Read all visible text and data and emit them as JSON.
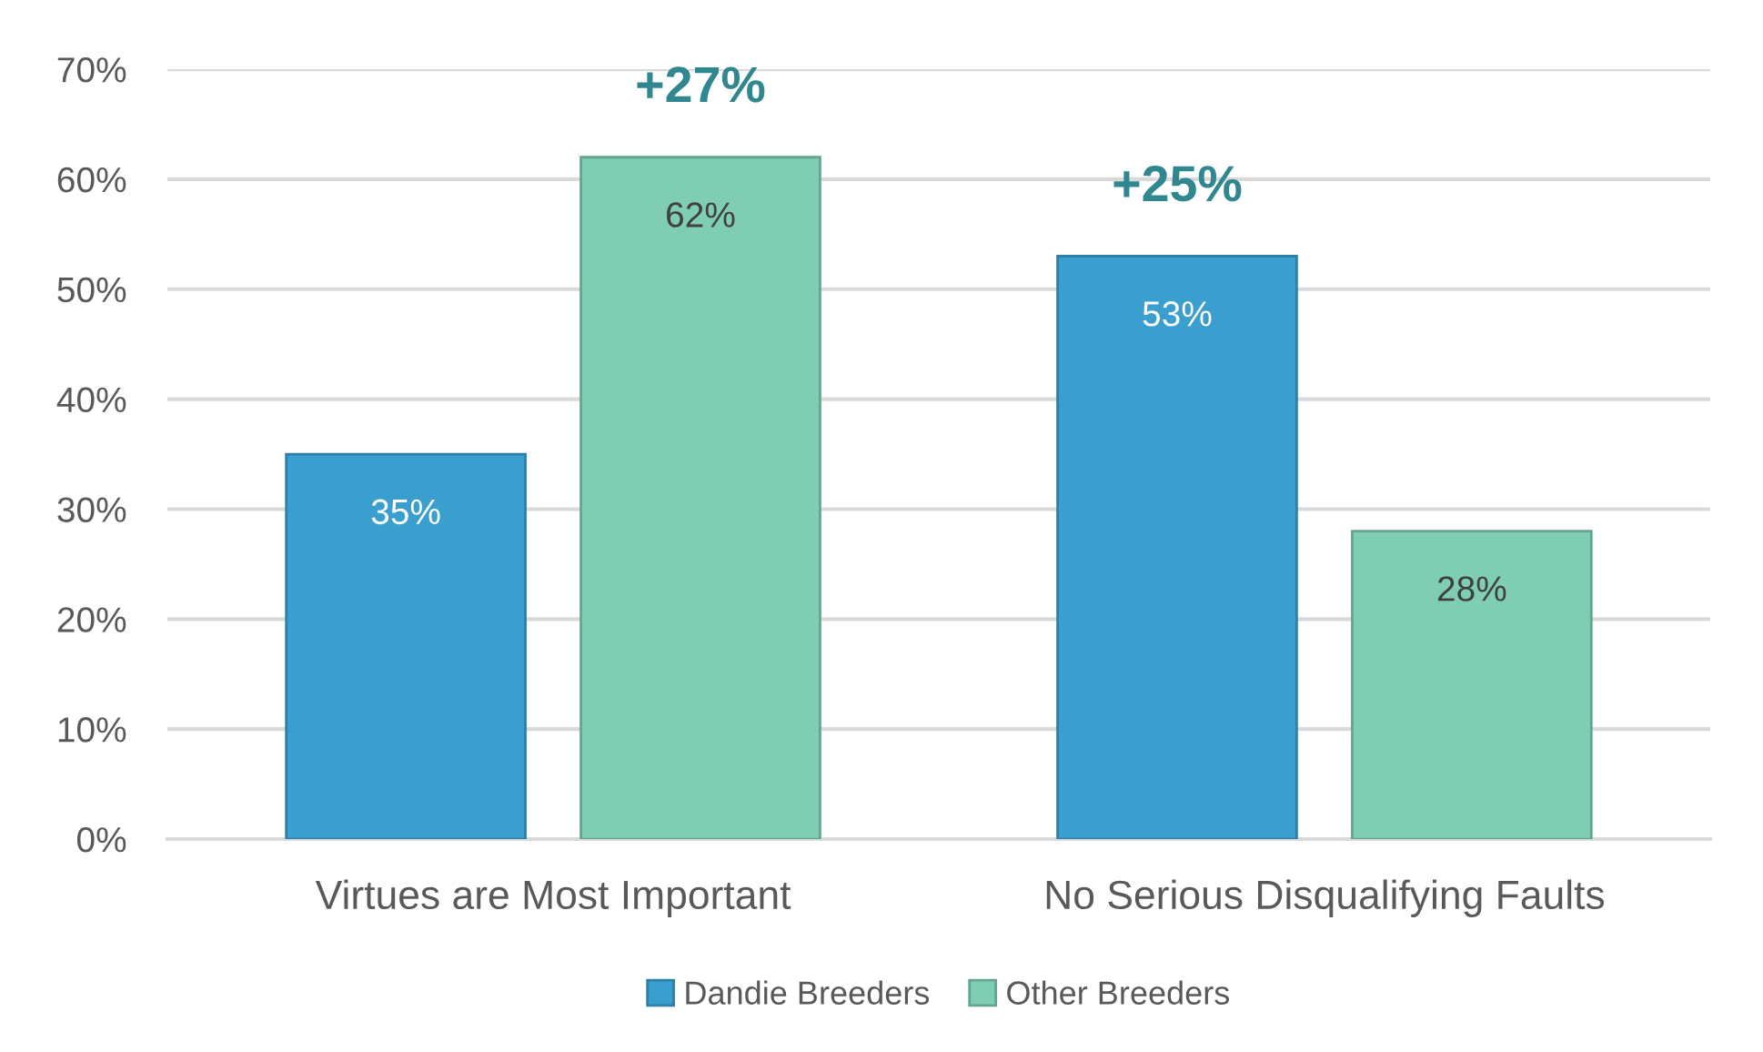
{
  "chart_data": {
    "type": "bar",
    "categories": [
      "Virtues are Most Important",
      "No Serious Disqualifying Faults"
    ],
    "series": [
      {
        "name": "Dandie Breeders",
        "color": "#3a9fcf",
        "values": [
          35,
          53
        ],
        "value_labels": [
          "35%",
          "53%"
        ]
      },
      {
        "name": "Other Breeders",
        "color": "#7fcdb2",
        "values": [
          62,
          28
        ],
        "value_labels": [
          "62%",
          "28%"
        ]
      }
    ],
    "ylim": [
      0,
      70
    ],
    "yticks": [
      {
        "value": 0,
        "label": "0%"
      },
      {
        "value": 10,
        "label": "10%"
      },
      {
        "value": 20,
        "label": "20%"
      },
      {
        "value": 30,
        "label": "30%"
      },
      {
        "value": 40,
        "label": "40%"
      },
      {
        "value": 50,
        "label": "50%"
      },
      {
        "value": 60,
        "label": "60%"
      },
      {
        "value": 70,
        "label": "70%"
      }
    ],
    "grid": "y",
    "legend": "bottom",
    "annotations": [
      "+27%",
      "+25%"
    ]
  }
}
